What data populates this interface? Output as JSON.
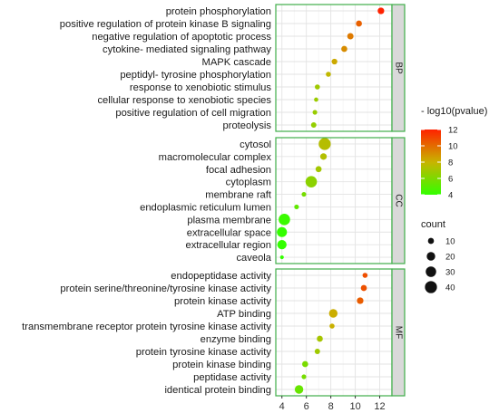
{
  "chart_data": {
    "type": "scatter",
    "title": "",
    "xlabel": "",
    "ylabel": "",
    "xlim": [
      3.5,
      13.0
    ],
    "x_ticks": [
      4,
      6,
      8,
      10,
      12
    ],
    "grid": true,
    "panel_border_color": "#3fae49",
    "strip_fill": "#d9d9d9",
    "color_scale": {
      "title": "- log10(pvalue)",
      "min": 4,
      "max": 12,
      "ticks": [
        4,
        6,
        8,
        10,
        12
      ],
      "low_color": "#33ff00",
      "mid_color": "#c8b400",
      "high_color": "#ff2200"
    },
    "size_scale": {
      "title": "count",
      "ticks": [
        10,
        20,
        30,
        40
      ]
    },
    "legend_position": "right",
    "facets": [
      {
        "label": "BP",
        "terms": [
          {
            "term": "protein phosphorylation",
            "x": 12.1,
            "color_value": 12.0,
            "count": 12
          },
          {
            "term": "positive regulation of protein kinase B signaling",
            "x": 10.3,
            "color_value": 10.3,
            "count": 10
          },
          {
            "term": "negative regulation of apoptotic process",
            "x": 9.6,
            "color_value": 9.6,
            "count": 11
          },
          {
            "term": "cytokine- mediated signaling pathway",
            "x": 9.1,
            "color_value": 9.1,
            "count": 10
          },
          {
            "term": "MAPK cascade",
            "x": 8.3,
            "color_value": 8.3,
            "count": 9
          },
          {
            "term": "peptidyl- tyrosine phosphorylation",
            "x": 7.8,
            "color_value": 7.8,
            "count": 7
          },
          {
            "term": "response to xenobiotic stimulus",
            "x": 6.9,
            "color_value": 6.9,
            "count": 7
          },
          {
            "term": "cellular response to xenobiotic species",
            "x": 6.8,
            "color_value": 6.8,
            "count": 5
          },
          {
            "term": "positive regulation of cell migration",
            "x": 6.7,
            "color_value": 6.7,
            "count": 6
          },
          {
            "term": "proteolysis",
            "x": 6.6,
            "color_value": 6.6,
            "count": 8
          }
        ]
      },
      {
        "label": "CC",
        "terms": [
          {
            "term": "cytosol",
            "x": 7.5,
            "color_value": 7.5,
            "count": 40
          },
          {
            "term": "macromolecular complex",
            "x": 7.4,
            "color_value": 7.4,
            "count": 12
          },
          {
            "term": "focal adhesion",
            "x": 7.0,
            "color_value": 7.0,
            "count": 10
          },
          {
            "term": "cytoplasm",
            "x": 6.4,
            "color_value": 6.4,
            "count": 36
          },
          {
            "term": "membrane raft",
            "x": 5.8,
            "color_value": 5.8,
            "count": 6
          },
          {
            "term": "endoplasmic reticulum lumen",
            "x": 5.2,
            "color_value": 5.2,
            "count": 6
          },
          {
            "term": "plasma membrane",
            "x": 4.2,
            "color_value": 4.2,
            "count": 36
          },
          {
            "term": "extracellular space",
            "x": 4.0,
            "color_value": 4.0,
            "count": 28
          },
          {
            "term": "extracellular region",
            "x": 4.0,
            "color_value": 4.0,
            "count": 24
          },
          {
            "term": "caveola",
            "x": 4.0,
            "color_value": 4.0,
            "count": 4
          }
        ]
      },
      {
        "label": "MF",
        "terms": [
          {
            "term": "endopeptidase activity",
            "x": 10.8,
            "color_value": 10.8,
            "count": 7
          },
          {
            "term": "protein serine/threonine/tyrosine kinase activity",
            "x": 10.7,
            "color_value": 10.7,
            "count": 10
          },
          {
            "term": "protein kinase activity",
            "x": 10.4,
            "color_value": 10.4,
            "count": 12
          },
          {
            "term": "ATP binding",
            "x": 8.2,
            "color_value": 8.2,
            "count": 20
          },
          {
            "term": "transmembrane receptor protein tyrosine kinase activity",
            "x": 8.1,
            "color_value": 8.1,
            "count": 7
          },
          {
            "term": "enzyme binding",
            "x": 7.1,
            "color_value": 7.1,
            "count": 10
          },
          {
            "term": "protein tyrosine kinase activity",
            "x": 6.9,
            "color_value": 6.9,
            "count": 8
          },
          {
            "term": "protein kinase binding",
            "x": 5.9,
            "color_value": 5.9,
            "count": 10
          },
          {
            "term": "peptidase activity",
            "x": 5.8,
            "color_value": 5.8,
            "count": 6
          },
          {
            "term": "identical protein binding",
            "x": 5.4,
            "color_value": 5.4,
            "count": 20
          }
        ]
      }
    ]
  }
}
